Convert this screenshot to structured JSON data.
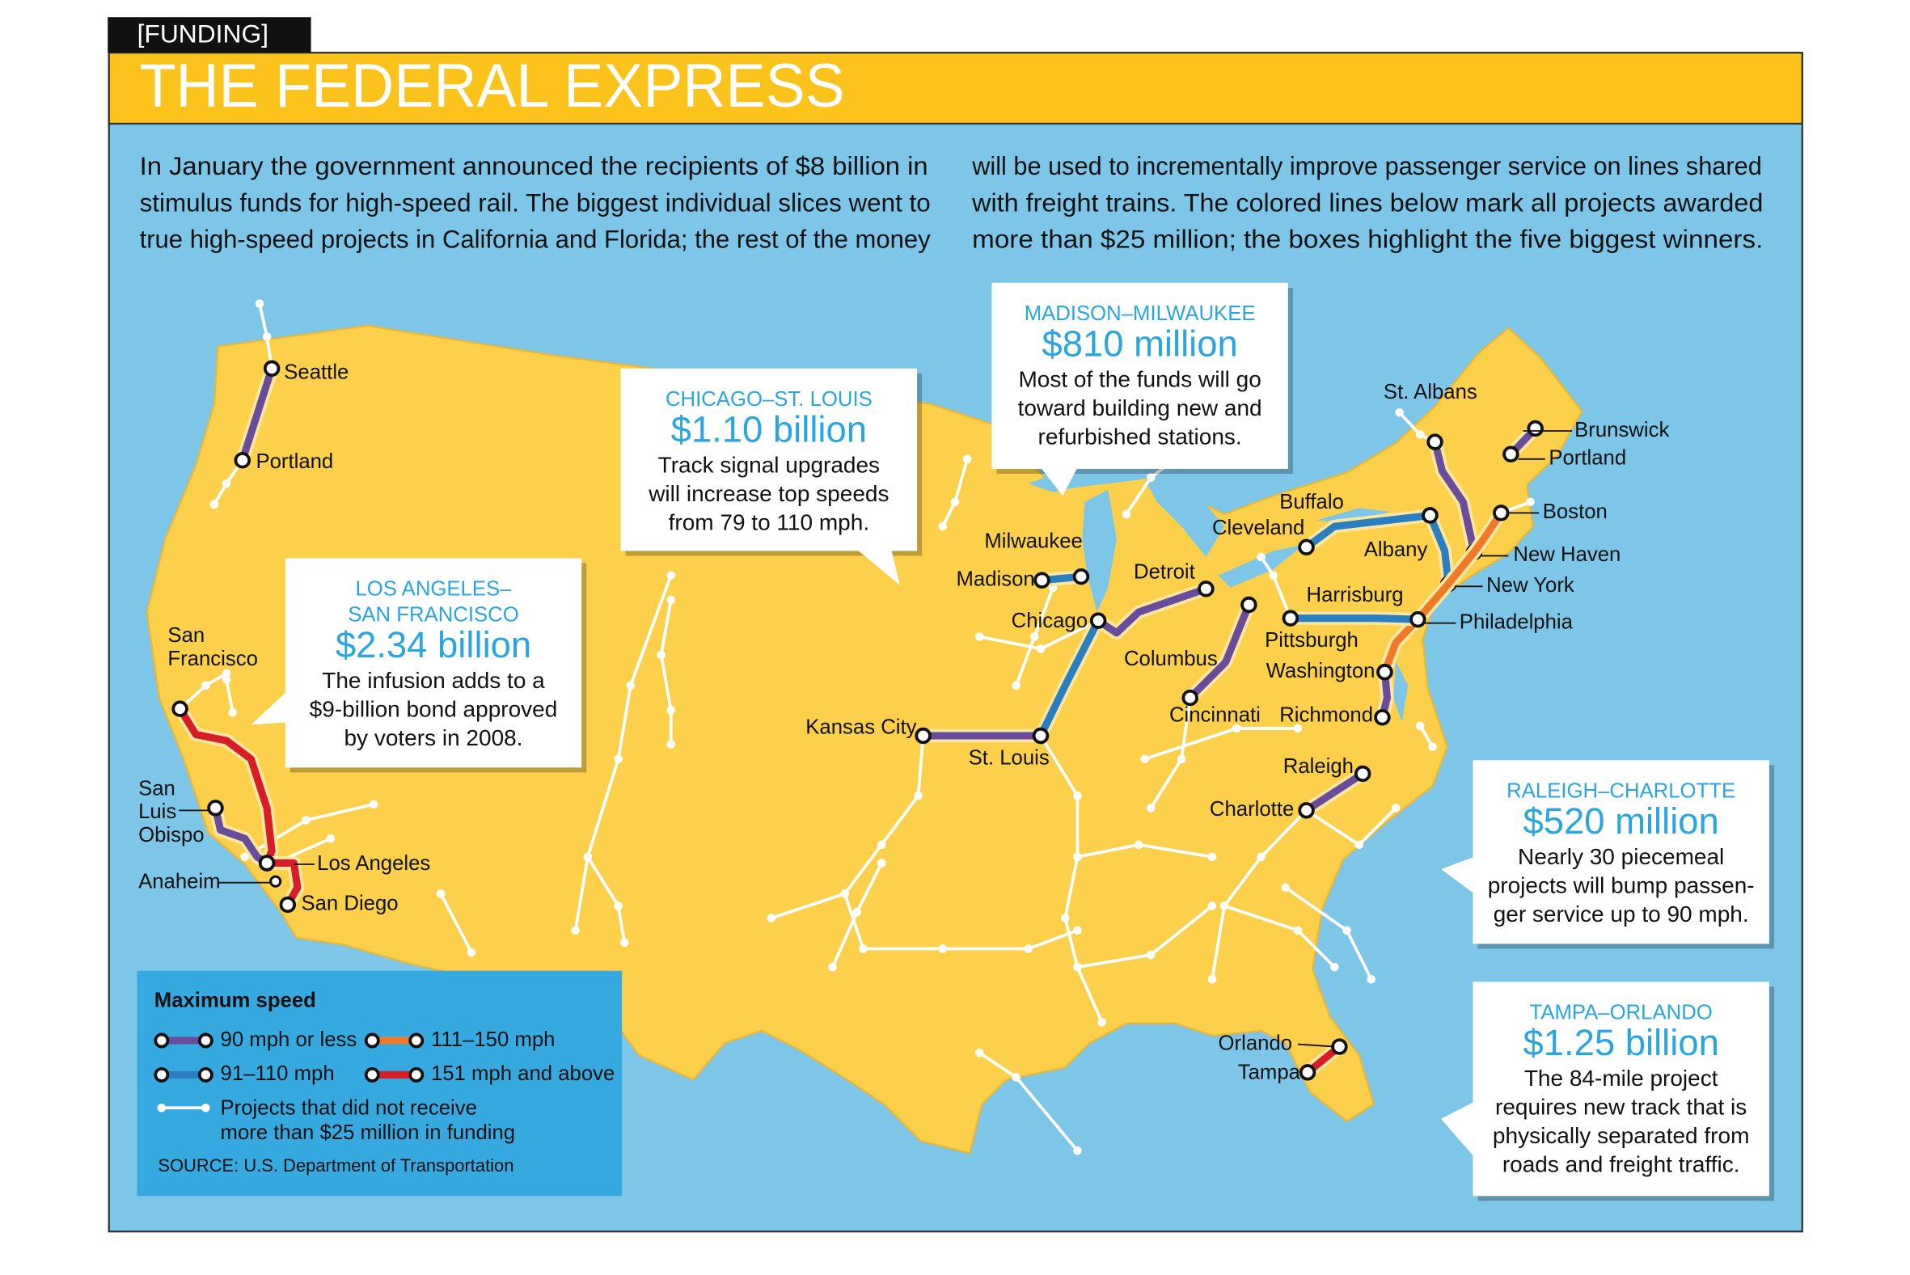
{
  "header": {
    "tag": "[FUNDING]",
    "title": "THE FEDERAL EXPRESS"
  },
  "intro": {
    "lines": [
      "In January the government announced the recipients of $8 billion in",
      "stimulus funds for high-speed rail. The biggest individual slices went to",
      "true high-speed projects in California and Florida; the rest of the money",
      "will be used to incrementally improve passenger service on lines shared",
      "with freight trains. The colored lines below mark all projects awarded",
      "more than $25 million; the boxes highlight the five biggest winners."
    ]
  },
  "callouts": [
    {
      "route_lines": [
        "CHICAGO–ST. LOUIS"
      ],
      "amount": "$1.10 billion",
      "lines": [
        "Track signal upgrades",
        "will increase top speeds",
        "from 79 to 110 mph."
      ]
    },
    {
      "route_lines": [
        "MADISON–MILWAUKEE"
      ],
      "amount": "$810 million",
      "lines": [
        "Most of the funds will go",
        "toward building new and",
        "refurbished stations."
      ]
    },
    {
      "route_lines": [
        "LOS ANGELES–",
        "SAN FRANCISCO"
      ],
      "amount": "$2.34 billion",
      "lines": [
        "The infusion adds to a",
        "$9-billion bond approved",
        "by voters in 2008."
      ]
    },
    {
      "route_lines": [
        "RALEIGH–CHARLOTTE"
      ],
      "amount": "$520 million",
      "lines": [
        "Nearly 30 piecemeal",
        "projects will bump passen-",
        "ger service up to 90 mph."
      ]
    },
    {
      "route_lines": [
        "TAMPA–ORLANDO"
      ],
      "amount": "$1.25 billion",
      "lines": [
        "The 84-mile project",
        "requires new track that is",
        "physically separated from",
        "roads and freight traffic."
      ]
    }
  ],
  "cities": [
    [
      "Seattle"
    ],
    [
      "Portland"
    ],
    [
      "San",
      "Francisco"
    ],
    [
      "San",
      "Luis",
      "Obispo"
    ],
    [
      "Los Angeles"
    ],
    [
      "Anaheim"
    ],
    [
      "San Diego"
    ],
    [
      "Milwaukee"
    ],
    [
      "Madison"
    ],
    [
      "Chicago"
    ],
    [
      "Detroit"
    ],
    [
      "Kansas City"
    ],
    [
      "St. Louis"
    ],
    [
      "Cleveland"
    ],
    [
      "Buffalo"
    ],
    [
      "Columbus"
    ],
    [
      "Cincinnati"
    ],
    [
      "St. Albans"
    ],
    [
      "Brunswick"
    ],
    [
      "Portland"
    ],
    [
      "Boston"
    ],
    [
      "Albany"
    ],
    [
      "New Haven"
    ],
    [
      "New York"
    ],
    [
      "Harrisburg"
    ],
    [
      "Philadelphia"
    ],
    [
      "Pittsburgh"
    ],
    [
      "Washington"
    ],
    [
      "Richmond"
    ],
    [
      "Raleigh"
    ],
    [
      "Charlotte"
    ],
    [
      "Orlando"
    ],
    [
      "Tampa"
    ]
  ],
  "legend": {
    "title": "Maximum speed",
    "items": [
      {
        "name": "90 mph or less",
        "color": "#6a4c9c"
      },
      {
        "name": "111–150 mph",
        "color": "#f07a2a"
      },
      {
        "name": "91–110 mph",
        "color": "#2a7fc0"
      },
      {
        "name": "151 mph and above",
        "color": "#d71e28"
      }
    ],
    "minor_lines": [
      "Projects that did not receive",
      "more than $25 million in funding"
    ],
    "source": "SOURCE: U.S. Department of Transportation"
  }
}
